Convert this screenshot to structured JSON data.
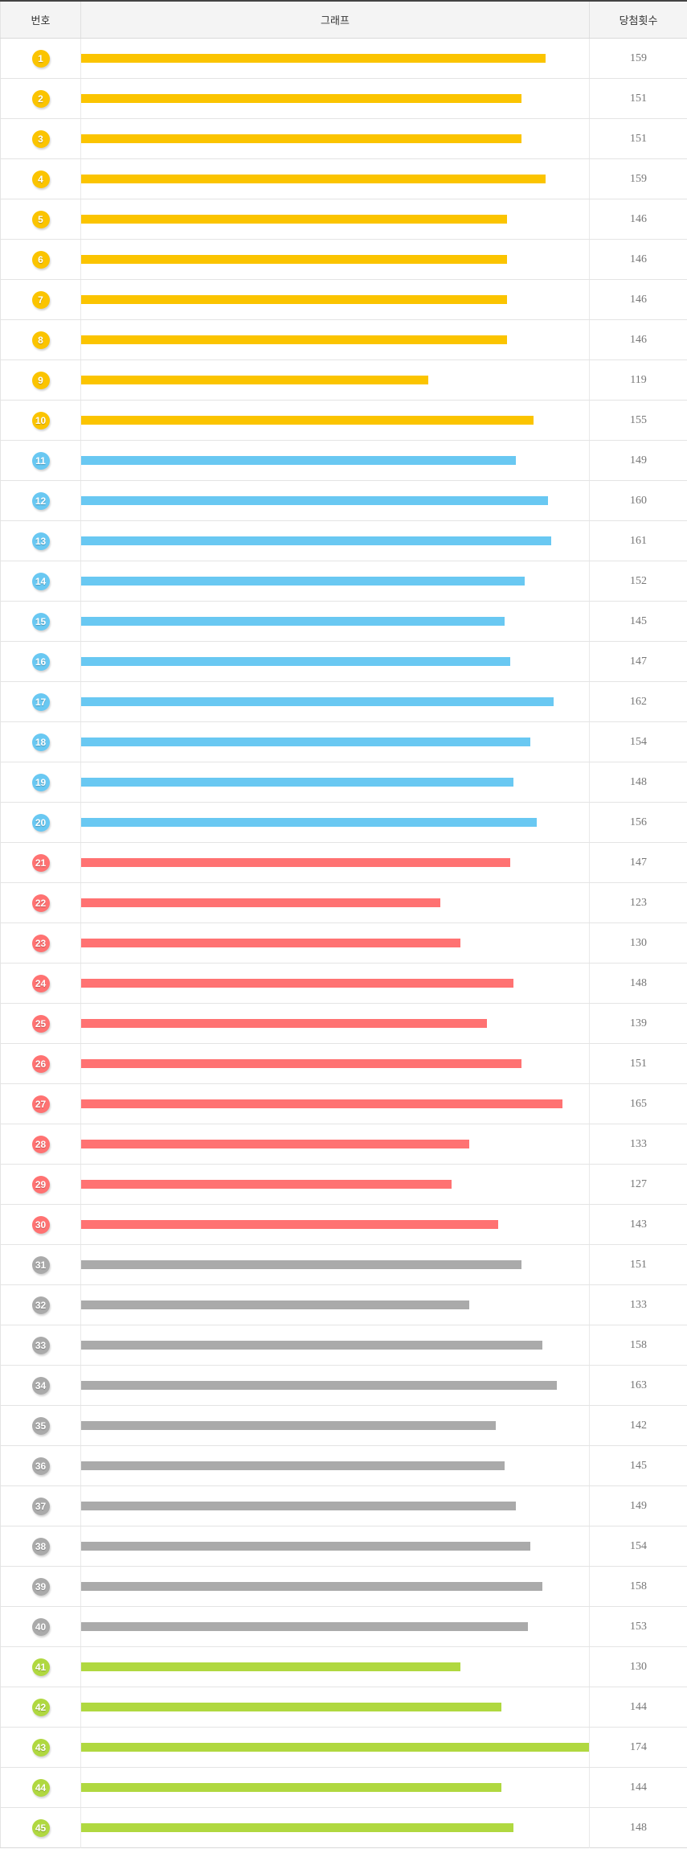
{
  "table": {
    "columns": {
      "number": "번호",
      "graph": "그래프",
      "count": "당첨횟수"
    }
  },
  "chart_data": {
    "type": "bar",
    "orientation": "horizontal",
    "title": "",
    "xlabel": "그래프",
    "ylabel": "번호",
    "value_label": "당첨횟수",
    "xlim": [
      0,
      174
    ],
    "grid": false,
    "categories": [
      1,
      2,
      3,
      4,
      5,
      6,
      7,
      8,
      9,
      10,
      11,
      12,
      13,
      14,
      15,
      16,
      17,
      18,
      19,
      20,
      21,
      22,
      23,
      24,
      25,
      26,
      27,
      28,
      29,
      30,
      31,
      32,
      33,
      34,
      35,
      36,
      37,
      38,
      39,
      40,
      41,
      42,
      43,
      44,
      45
    ],
    "values": [
      159,
      151,
      151,
      159,
      146,
      146,
      146,
      146,
      119,
      155,
      149,
      160,
      161,
      152,
      145,
      147,
      162,
      154,
      148,
      156,
      147,
      123,
      130,
      148,
      139,
      151,
      165,
      133,
      127,
      143,
      151,
      133,
      158,
      163,
      142,
      145,
      149,
      154,
      158,
      153,
      130,
      144,
      174,
      144,
      148
    ],
    "max_value": 174,
    "group_colors": [
      "#FBC400",
      "#69C8F2",
      "#FF7272",
      "#AAAAAA",
      "#B0D840"
    ],
    "group_ranges": [
      {
        "label": "1-10",
        "color": "#FBC400"
      },
      {
        "label": "11-20",
        "color": "#69C8F2"
      },
      {
        "label": "21-30",
        "color": "#FF7272"
      },
      {
        "label": "31-40",
        "color": "#AAAAAA"
      },
      {
        "label": "41-45",
        "color": "#B0D840"
      }
    ]
  }
}
